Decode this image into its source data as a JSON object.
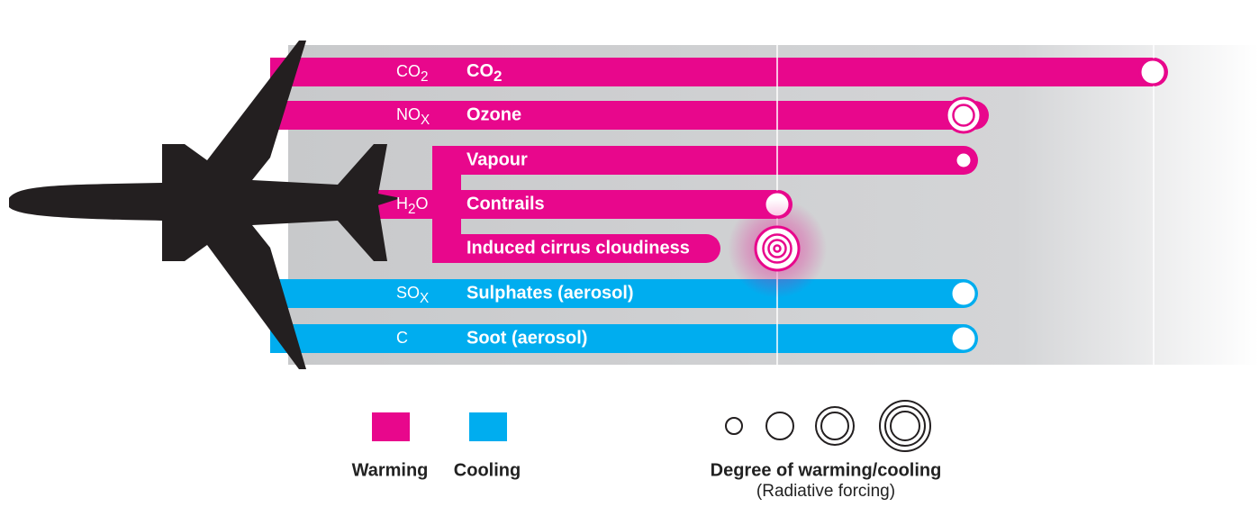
{
  "rows": [
    {
      "formula": {
        "base": "CO",
        "sub": "2"
      },
      "label": {
        "base": "CO",
        "sub": "2"
      }
    },
    {
      "formula": {
        "base": "NO",
        "sub": "X"
      },
      "label": "Ozone"
    },
    {
      "label": "Vapour"
    },
    {
      "formula": {
        "base": "H",
        "sub": "2",
        "after": "O"
      },
      "label": "Contrails"
    },
    {
      "label": "Induced cirrus cloudiness"
    },
    {
      "formula": {
        "base": "SO",
        "sub": "X"
      },
      "label": "Sulphates (aerosol)"
    },
    {
      "formula": {
        "base": "C"
      },
      "label": "Soot (aerosol)"
    }
  ],
  "legend": {
    "warming": "Warming",
    "cooling": "Cooling",
    "degree_title": "Degree of warming/cooling",
    "degree_subtitle": "(Radiative forcing)"
  }
}
